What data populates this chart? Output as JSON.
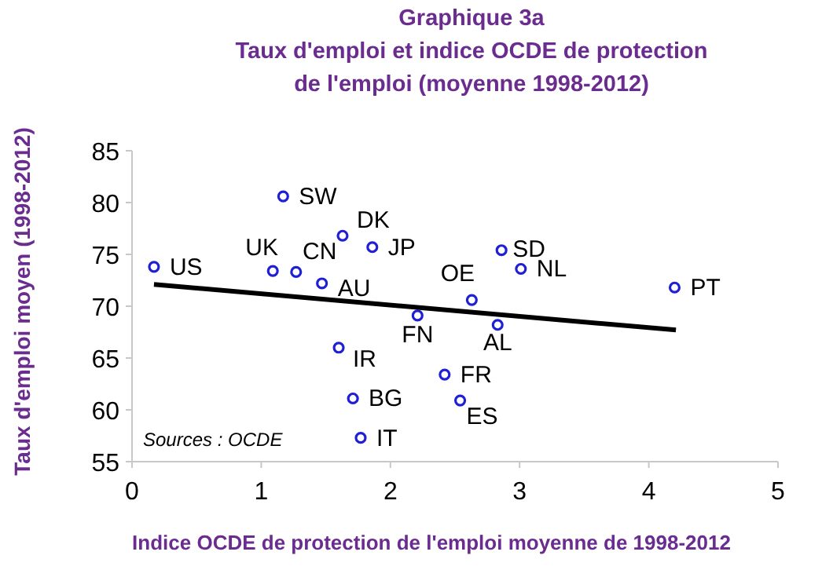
{
  "chart_data": {
    "type": "scatter",
    "title": "Graphique 3a\nTaux d'emploi et indice OCDE de protection\nde l'emploi (moyenne 1998-2012)",
    "xlabel": "Indice OCDE de protection de l'emploi moyenne de 1998-2012",
    "ylabel": "Taux d'emploi moyen  (1998-2012)",
    "annotations": [
      "Sources : OCDE"
    ],
    "xlim": [
      0,
      5
    ],
    "xticks": [
      0,
      1,
      2,
      3,
      4,
      5
    ],
    "ylim": [
      55,
      85
    ],
    "yticks": [
      55,
      60,
      65,
      70,
      75,
      80,
      85
    ],
    "grid": false,
    "marker": "circle",
    "series": [
      {
        "name": "US",
        "color": "#1f1fd6",
        "x": [
          0.17
        ],
        "values": [
          73.8
        ]
      },
      {
        "name": "SW",
        "color": "#1f1fd6",
        "x": [
          1.17
        ],
        "values": [
          80.6
        ]
      },
      {
        "name": "DK",
        "color": "#1f1fd6",
        "x": [
          1.63
        ],
        "values": [
          76.8
        ]
      },
      {
        "name": "JP",
        "color": "#1f1fd6",
        "x": [
          1.86
        ],
        "values": [
          75.7
        ]
      },
      {
        "name": "UK",
        "color": "#1f1fd6",
        "x": [
          1.09
        ],
        "values": [
          73.4
        ]
      },
      {
        "name": "CN",
        "color": "#1f1fd6",
        "x": [
          1.27
        ],
        "values": [
          73.3
        ]
      },
      {
        "name": "AU",
        "color": "#1f1fd6",
        "x": [
          1.47
        ],
        "values": [
          72.2
        ]
      },
      {
        "name": "FN",
        "color": "#1f1fd6",
        "x": [
          2.21
        ],
        "values": [
          69.1
        ]
      },
      {
        "name": "IR",
        "color": "#1f1fd6",
        "x": [
          1.6
        ],
        "values": [
          66.0
        ]
      },
      {
        "name": "BG",
        "color": "#1f1fd6",
        "x": [
          1.71
        ],
        "values": [
          61.1
        ]
      },
      {
        "name": "IT",
        "color": "#1f1fd6",
        "x": [
          1.77
        ],
        "values": [
          57.3
        ]
      },
      {
        "name": "FR",
        "color": "#1f1fd6",
        "x": [
          2.42
        ],
        "values": [
          63.4
        ]
      },
      {
        "name": "ES",
        "color": "#1f1fd6",
        "x": [
          2.54
        ],
        "values": [
          60.9
        ]
      },
      {
        "name": "AL",
        "color": "#1f1fd6",
        "x": [
          2.83
        ],
        "values": [
          68.2
        ]
      },
      {
        "name": "OE",
        "color": "#1f1fd6",
        "x": [
          2.63
        ],
        "values": [
          70.6
        ]
      },
      {
        "name": "SD",
        "color": "#1f1fd6",
        "x": [
          2.86
        ],
        "values": [
          75.4
        ]
      },
      {
        "name": "NL",
        "color": "#1f1fd6",
        "x": [
          3.01
        ],
        "values": [
          73.6
        ]
      },
      {
        "name": "PT",
        "color": "#1f1fd6",
        "x": [
          4.2
        ],
        "values": [
          71.8
        ]
      },
      {
        "type": "line",
        "color": "#000000",
        "x": [
          0.17,
          4.21
        ],
        "values": [
          72.1,
          67.7
        ],
        "line_style": "solid",
        "marker": "none"
      }
    ]
  }
}
